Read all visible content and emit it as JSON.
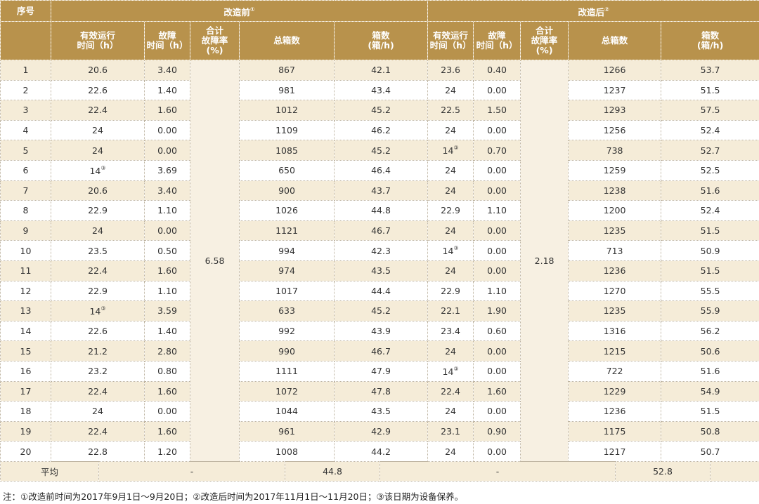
{
  "table": {
    "group_headers": [
      {
        "text": "序号"
      },
      {
        "text": "改造前",
        "sup": "①"
      },
      {
        "text": "改造后",
        "sup": "②"
      }
    ],
    "column_headers": [
      [
        "有效运行",
        "时间（h）"
      ],
      [
        "故障",
        "时间（h）"
      ],
      [
        "合计",
        "故障率",
        "(%)"
      ],
      [
        "总箱数"
      ],
      [
        "箱数",
        "(箱/h)"
      ],
      [
        "有效运行",
        "时间（h）"
      ],
      [
        "故障",
        "时间（h）"
      ],
      [
        "合计",
        "故障率",
        "(%)"
      ],
      [
        "总箱数"
      ],
      [
        "箱数",
        "(箱/h)"
      ]
    ],
    "merged": [
      "6.58",
      "2.18"
    ],
    "rows": [
      [
        "1",
        "20.6",
        "3.40",
        "867",
        "42.1",
        "23.6",
        "0.40",
        "1266",
        "53.7"
      ],
      [
        "2",
        "22.6",
        "1.40",
        "981",
        "43.4",
        "24",
        "0.00",
        "1237",
        "51.5"
      ],
      [
        "3",
        "22.4",
        "1.60",
        "1012",
        "45.2",
        "22.5",
        "1.50",
        "1293",
        "57.5"
      ],
      [
        "4",
        "24",
        "0.00",
        "1109",
        "46.2",
        "24",
        "0.00",
        "1256",
        "52.4"
      ],
      [
        "5",
        "24",
        "0.00",
        "1085",
        "45.2",
        {
          "text": "14",
          "sup": "③"
        },
        "0.70",
        "738",
        "52.7"
      ],
      [
        "6",
        {
          "text": "14",
          "sup": "③"
        },
        "3.69",
        "650",
        "46.4",
        "24",
        "0.00",
        "1259",
        "52.5"
      ],
      [
        "7",
        "20.6",
        "3.40",
        "900",
        "43.7",
        "24",
        "0.00",
        "1238",
        "51.6"
      ],
      [
        "8",
        "22.9",
        "1.10",
        "1026",
        "44.8",
        "22.9",
        "1.10",
        "1200",
        "52.4"
      ],
      [
        "9",
        "24",
        "0.00",
        "1121",
        "46.7",
        "24",
        "0.00",
        "1235",
        "51.5"
      ],
      [
        "10",
        "23.5",
        "0.50",
        "994",
        "42.3",
        {
          "text": "14",
          "sup": "③"
        },
        "0.00",
        "713",
        "50.9"
      ],
      [
        "11",
        "22.4",
        "1.60",
        "974",
        "43.5",
        "24",
        "0.00",
        "1236",
        "51.5"
      ],
      [
        "12",
        "22.9",
        "1.10",
        "1017",
        "44.4",
        "22.9",
        "1.10",
        "1270",
        "55.5"
      ],
      [
        "13",
        {
          "text": "14",
          "sup": "③"
        },
        "3.59",
        "633",
        "45.2",
        "22.1",
        "1.90",
        "1235",
        "55.9"
      ],
      [
        "14",
        "22.6",
        "1.40",
        "992",
        "43.9",
        "23.4",
        "0.60",
        "1316",
        "56.2"
      ],
      [
        "15",
        "21.2",
        "2.80",
        "990",
        "46.7",
        "24",
        "0.00",
        "1215",
        "50.6"
      ],
      [
        "16",
        "23.2",
        "0.80",
        "1111",
        "47.9",
        {
          "text": "14",
          "sup": "③"
        },
        "0.00",
        "722",
        "51.6"
      ],
      [
        "17",
        "22.4",
        "1.60",
        "1072",
        "47.8",
        "22.4",
        "1.60",
        "1229",
        "54.9"
      ],
      [
        "18",
        "24",
        "0.00",
        "1044",
        "43.5",
        "24",
        "0.00",
        "1236",
        "51.5"
      ],
      [
        "19",
        "22.4",
        "1.60",
        "961",
        "42.9",
        "23.1",
        "0.90",
        "1175",
        "50.8"
      ],
      [
        "20",
        "22.8",
        "1.20",
        "1008",
        "44.2",
        "24",
        "0.00",
        "1217",
        "50.7"
      ]
    ],
    "average": [
      "平均",
      "-",
      "44.8",
      "-",
      "52.8"
    ]
  },
  "footnote": "注：①改造前时间为2017年9月1日～9月20日；②改造后时间为2017年11月1日～11月20日；③该日期为设备保养。"
}
